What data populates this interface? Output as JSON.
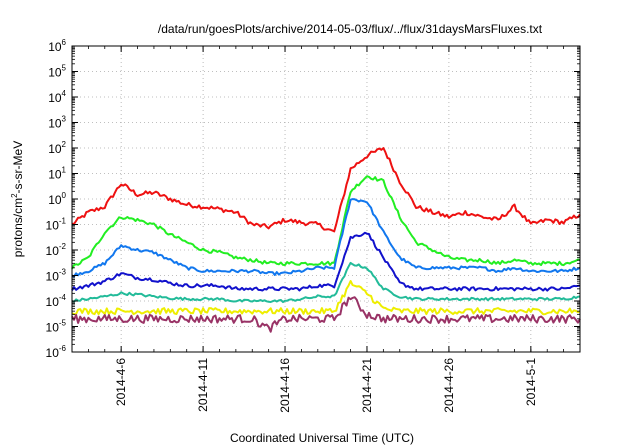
{
  "chart_data": {
    "type": "line",
    "title": "/data/run/goesPlots/archive/2014-05-03/flux/../flux/31daysMarsFluxes.txt",
    "xlabel": "Coordinated Universal Time (UTC)",
    "ylabel": "protons/cm2-s-sr-MeV",
    "xlim": [
      "2014-04-03",
      "2014-05-04"
    ],
    "ylim": [
      1e-06,
      1000000.0
    ],
    "yscale": "log",
    "grid": true,
    "legend": "none",
    "x_ticks": [
      "2014-4-6",
      "2014-4-11",
      "2014-4-16",
      "2014-4-21",
      "2014-4-26",
      "2014-5-1"
    ],
    "y_ticks": [
      {
        "base": "10",
        "exp": "-6"
      },
      {
        "base": "10",
        "exp": "-5"
      },
      {
        "base": "10",
        "exp": "-4"
      },
      {
        "base": "10",
        "exp": "-3"
      },
      {
        "base": "10",
        "exp": "-2"
      },
      {
        "base": "10",
        "exp": "-1"
      },
      {
        "base": "10",
        "exp": "0"
      },
      {
        "base": "10",
        "exp": "1"
      },
      {
        "base": "10",
        "exp": "2"
      },
      {
        "base": "10",
        "exp": "3"
      },
      {
        "base": "10",
        "exp": "4"
      },
      {
        "base": "10",
        "exp": "5"
      },
      {
        "base": "10",
        "exp": "6"
      }
    ],
    "series": [
      {
        "color": "#ee1111",
        "x": [
          "2014-04-03",
          "2014-04-04",
          "2014-04-05",
          "2014-04-06",
          "2014-04-07",
          "2014-04-08",
          "2014-04-09",
          "2014-04-10",
          "2014-04-11",
          "2014-04-12",
          "2014-04-13",
          "2014-04-14",
          "2014-04-15",
          "2014-04-16",
          "2014-04-17",
          "2014-04-18",
          "2014-04-19",
          "2014-04-20",
          "2014-04-21",
          "2014-04-22",
          "2014-04-23",
          "2014-04-24",
          "2014-04-25",
          "2014-04-26",
          "2014-04-27",
          "2014-04-28",
          "2014-04-29",
          "2014-04-30",
          "2014-05-01",
          "2014-05-02",
          "2014-05-03",
          "2014-05-04"
        ],
        "values": [
          0.1,
          0.3,
          0.5,
          4,
          1.5,
          1.8,
          1,
          0.6,
          0.5,
          0.4,
          0.3,
          0.1,
          0.08,
          0.15,
          0.12,
          0.1,
          0.05,
          15,
          50,
          100,
          5,
          0.5,
          0.3,
          0.2,
          0.3,
          0.2,
          0.15,
          0.5,
          0.1,
          0.15,
          0.12,
          0.25
        ]
      },
      {
        "color": "#22ee22",
        "x": [
          "2014-04-03",
          "2014-04-04",
          "2014-04-05",
          "2014-04-06",
          "2014-04-07",
          "2014-04-08",
          "2014-04-09",
          "2014-04-10",
          "2014-04-11",
          "2014-04-12",
          "2014-04-13",
          "2014-04-14",
          "2014-04-15",
          "2014-04-16",
          "2014-04-17",
          "2014-04-18",
          "2014-04-19",
          "2014-04-20",
          "2014-04-21",
          "2014-04-22",
          "2014-04-23",
          "2014-04-24",
          "2014-04-25",
          "2014-04-26",
          "2014-04-27",
          "2014-04-28",
          "2014-04-29",
          "2014-04-30",
          "2014-05-01",
          "2014-05-02",
          "2014-05-03",
          "2014-05-04"
        ],
        "values": [
          0.002,
          0.005,
          0.05,
          0.2,
          0.15,
          0.1,
          0.04,
          0.02,
          0.01,
          0.008,
          0.005,
          0.004,
          0.003,
          0.003,
          0.003,
          0.003,
          0.003,
          2,
          8,
          5,
          0.2,
          0.02,
          0.01,
          0.005,
          0.004,
          0.004,
          0.003,
          0.004,
          0.003,
          0.003,
          0.003,
          0.004
        ]
      },
      {
        "color": "#1177ee",
        "x": [
          "2014-04-03",
          "2014-04-04",
          "2014-04-05",
          "2014-04-06",
          "2014-04-07",
          "2014-04-08",
          "2014-04-09",
          "2014-04-10",
          "2014-04-11",
          "2014-04-12",
          "2014-04-13",
          "2014-04-14",
          "2014-04-15",
          "2014-04-16",
          "2014-04-17",
          "2014-04-18",
          "2014-04-19",
          "2014-04-20",
          "2014-04-21",
          "2014-04-22",
          "2014-04-23",
          "2014-04-24",
          "2014-04-25",
          "2014-04-26",
          "2014-04-27",
          "2014-04-28",
          "2014-04-29",
          "2014-04-30",
          "2014-05-01",
          "2014-05-02",
          "2014-05-03",
          "2014-05-04"
        ],
        "values": [
          0.001,
          0.0015,
          0.003,
          0.015,
          0.01,
          0.008,
          0.004,
          0.002,
          0.0015,
          0.0015,
          0.0015,
          0.0015,
          0.0012,
          0.0012,
          0.0015,
          0.002,
          0.002,
          1,
          0.8,
          0.05,
          0.005,
          0.002,
          0.002,
          0.002,
          0.002,
          0.002,
          0.0015,
          0.002,
          0.0015,
          0.0015,
          0.0015,
          0.002
        ]
      },
      {
        "color": "#1111cc",
        "x": [
          "2014-04-03",
          "2014-04-04",
          "2014-04-05",
          "2014-04-06",
          "2014-04-07",
          "2014-04-08",
          "2014-04-09",
          "2014-04-10",
          "2014-04-11",
          "2014-04-12",
          "2014-04-13",
          "2014-04-14",
          "2014-04-15",
          "2014-04-16",
          "2014-04-17",
          "2014-04-18",
          "2014-04-19",
          "2014-04-20",
          "2014-04-21",
          "2014-04-22",
          "2014-04-23",
          "2014-04-24",
          "2014-04-25",
          "2014-04-26",
          "2014-04-27",
          "2014-04-28",
          "2014-04-29",
          "2014-04-30",
          "2014-05-01",
          "2014-05-02",
          "2014-05-03",
          "2014-05-04"
        ],
        "values": [
          0.0003,
          0.0004,
          0.0006,
          0.0012,
          0.0008,
          0.0007,
          0.0005,
          0.0004,
          0.0004,
          0.0004,
          0.0003,
          0.0003,
          0.0003,
          0.0003,
          0.0003,
          0.0004,
          0.0004,
          0.03,
          0.05,
          0.005,
          0.0005,
          0.0003,
          0.0003,
          0.0003,
          0.0003,
          0.0003,
          0.0003,
          0.0003,
          0.0003,
          0.0003,
          0.0003,
          0.0004
        ]
      },
      {
        "color": "#22bb99",
        "x": [
          "2014-04-03",
          "2014-04-04",
          "2014-04-05",
          "2014-04-06",
          "2014-04-07",
          "2014-04-08",
          "2014-04-09",
          "2014-04-10",
          "2014-04-11",
          "2014-04-12",
          "2014-04-13",
          "2014-04-14",
          "2014-04-15",
          "2014-04-16",
          "2014-04-17",
          "2014-04-18",
          "2014-04-19",
          "2014-04-20",
          "2014-04-21",
          "2014-04-22",
          "2014-04-23",
          "2014-04-24",
          "2014-04-25",
          "2014-04-26",
          "2014-04-27",
          "2014-04-28",
          "2014-04-29",
          "2014-04-30",
          "2014-05-01",
          "2014-05-02",
          "2014-05-03",
          "2014-05-04"
        ],
        "values": [
          0.0001,
          0.00012,
          0.00015,
          0.0002,
          0.00018,
          0.00015,
          0.00013,
          0.00012,
          0.00012,
          0.00012,
          0.0001,
          0.0001,
          0.0001,
          0.0001,
          0.00012,
          0.00015,
          0.00015,
          0.003,
          0.002,
          0.0003,
          0.00015,
          0.00012,
          0.00012,
          0.00012,
          0.00012,
          0.00012,
          0.00012,
          0.00012,
          0.00012,
          0.00012,
          0.00012,
          0.00015
        ]
      },
      {
        "color": "#eeee00",
        "x": [
          "2014-04-03",
          "2014-04-04",
          "2014-04-05",
          "2014-04-06",
          "2014-04-07",
          "2014-04-08",
          "2014-04-09",
          "2014-04-10",
          "2014-04-11",
          "2014-04-12",
          "2014-04-13",
          "2014-04-14",
          "2014-04-15",
          "2014-04-16",
          "2014-04-17",
          "2014-04-18",
          "2014-04-19",
          "2014-04-20",
          "2014-04-21",
          "2014-04-22",
          "2014-04-23",
          "2014-04-24",
          "2014-04-25",
          "2014-04-26",
          "2014-04-27",
          "2014-04-28",
          "2014-04-29",
          "2014-04-30",
          "2014-05-01",
          "2014-05-02",
          "2014-05-03",
          "2014-05-04"
        ],
        "values": [
          4e-05,
          4e-05,
          4e-05,
          4e-05,
          4e-05,
          4e-05,
          4e-05,
          4e-05,
          4e-05,
          4e-05,
          4e-05,
          4e-05,
          4e-05,
          4e-05,
          4e-05,
          4e-05,
          4e-05,
          0.0005,
          0.0002,
          5e-05,
          4e-05,
          4e-05,
          4e-05,
          4e-05,
          4e-05,
          4e-05,
          4e-05,
          4e-05,
          4e-05,
          4e-05,
          4e-05,
          4e-05
        ]
      },
      {
        "color": "#993366",
        "x": [
          "2014-04-03",
          "2014-04-04",
          "2014-04-05",
          "2014-04-06",
          "2014-04-07",
          "2014-04-08",
          "2014-04-09",
          "2014-04-10",
          "2014-04-11",
          "2014-04-12",
          "2014-04-13",
          "2014-04-14",
          "2014-04-15",
          "2014-04-16",
          "2014-04-17",
          "2014-04-18",
          "2014-04-19",
          "2014-04-20",
          "2014-04-21",
          "2014-04-22",
          "2014-04-23",
          "2014-04-24",
          "2014-04-25",
          "2014-04-26",
          "2014-04-27",
          "2014-04-28",
          "2014-04-29",
          "2014-04-30",
          "2014-05-01",
          "2014-05-02",
          "2014-05-03",
          "2014-05-04"
        ],
        "values": [
          2e-05,
          2e-05,
          2e-05,
          2e-05,
          2e-05,
          2e-05,
          2e-05,
          2e-05,
          2e-05,
          2e-05,
          2e-05,
          2e-05,
          8e-06,
          2e-05,
          2e-05,
          2e-05,
          2e-05,
          0.00015,
          3e-05,
          2e-05,
          2e-05,
          2e-05,
          2e-05,
          2e-05,
          2e-05,
          2e-05,
          2e-05,
          2e-05,
          2e-05,
          2e-05,
          2e-05,
          2e-05
        ]
      }
    ]
  }
}
